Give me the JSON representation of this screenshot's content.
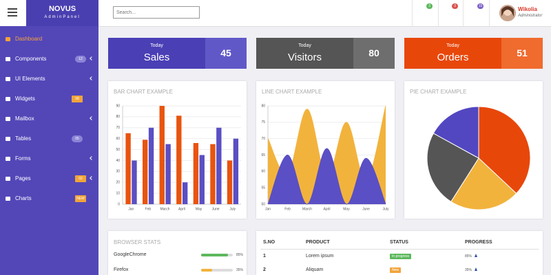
{
  "topbar": {
    "brand": "NOVUS",
    "brand_sub": "AdminPanel",
    "search_placeholder": "Search...",
    "badges": [
      {
        "text": "3",
        "color": "#5cb85c"
      },
      {
        "text": "3",
        "color": "#d9534f"
      },
      {
        "text": "15",
        "color": "#7d5fc7"
      }
    ],
    "user_name": "Wikolia",
    "user_role": "Administrator"
  },
  "sidebar": {
    "items": [
      {
        "label": "Dashboard",
        "active": true
      },
      {
        "label": "Components",
        "badge": "12",
        "badge_color": "#8b84d6",
        "chevron": true
      },
      {
        "label": "UI Elements",
        "chevron": true
      },
      {
        "label": "Widgets",
        "badge": "08",
        "badge_color": "#f0a43a"
      },
      {
        "label": "Mailbox",
        "chevron": true
      },
      {
        "label": "Tables",
        "badge": "05",
        "badge_color": "#8b84d6"
      },
      {
        "label": "Forms",
        "chevron": true
      },
      {
        "label": "Pages",
        "badge": "02",
        "badge_color": "#f0a43a",
        "chevron": true
      },
      {
        "label": "Charts",
        "badge": "NEW",
        "badge_color": "#f0a43a"
      }
    ]
  },
  "stats": [
    {
      "caption": "Today",
      "label": "Sales",
      "value": 45,
      "color": "#4a3fb5",
      "accent": "#6158c8"
    },
    {
      "caption": "Today",
      "label": "Visitors",
      "value": 80,
      "color": "#555555",
      "accent": "#6e6e6e"
    },
    {
      "caption": "Today",
      "label": "Orders",
      "value": 51,
      "color": "#e8470a",
      "accent": "#f06b2e"
    }
  ],
  "bar_chart": {
    "type": "bar",
    "title": "BAR CHART EXAMPLE",
    "categories": [
      "Jan",
      "Feb",
      "March",
      "April",
      "May",
      "June",
      "July"
    ],
    "series": [
      {
        "color": "#e8540f",
        "values": [
          65,
          59,
          90,
          81,
          56,
          55,
          40
        ]
      },
      {
        "color": "#5a4fc4",
        "values": [
          40,
          70,
          55,
          20,
          45,
          70,
          60
        ]
      }
    ],
    "ylim": [
      0,
      90
    ],
    "yticks": [
      0,
      10,
      20,
      30,
      40,
      50,
      60,
      70,
      80,
      90
    ]
  },
  "line_chart": {
    "type": "line",
    "title": "LINE CHART EXAMPLE",
    "categories": [
      "Jan",
      "Feb",
      "March",
      "April",
      "May",
      "June",
      "July"
    ],
    "series": [
      {
        "color": "#f2b33d",
        "values": [
          70,
          59,
          79,
          58,
          75,
          57,
          80
        ]
      },
      {
        "color": "#5a4fc4",
        "values": [
          50,
          65,
          50,
          67,
          50,
          64,
          50
        ]
      }
    ],
    "ylim": [
      50,
      80
    ],
    "yticks": [
      50,
      55,
      60,
      65,
      70,
      75,
      80
    ]
  },
  "pie_chart": {
    "type": "pie",
    "title": "PIE CHART EXAMPLE",
    "values": [
      37,
      22,
      24,
      17
    ],
    "colors": [
      "#e8470a",
      "#f2b33d",
      "#555555",
      "#5247c0"
    ]
  },
  "browser_stats": {
    "title": "BROWSER STATS",
    "rows": [
      {
        "name": "GoogleChrome",
        "value": 85,
        "label": "85%",
        "color": "#5cb85c"
      },
      {
        "name": "Firefox",
        "value": 35,
        "label": "35%",
        "color": "#f2b33d"
      }
    ]
  },
  "table": {
    "headers": [
      "S.NO",
      "PRODUCT",
      "STATUS",
      "PROGRESS"
    ],
    "rows": [
      {
        "no": 1,
        "product": "Lorem ipsum",
        "status": "In progress",
        "status_color": "#5cb85c",
        "progress": {
          "value": 85,
          "label": "85%"
        }
      },
      {
        "no": 2,
        "product": "Aliquam",
        "status": "New",
        "status_color": "#f0a43a",
        "progress": {
          "value": 35,
          "label": "35%"
        }
      }
    ]
  }
}
